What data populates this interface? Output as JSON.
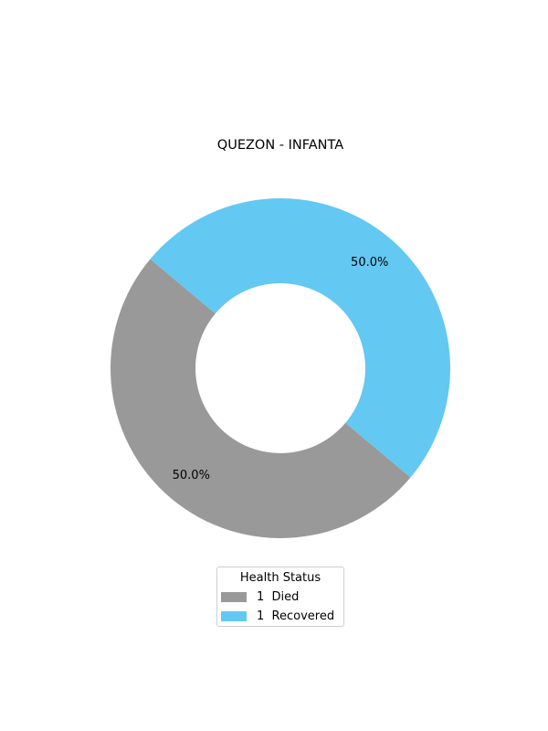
{
  "chart_data": {
    "type": "pie",
    "style": "donut",
    "title": "QUEZON - INFANTA",
    "slices": [
      {
        "name": "Died",
        "value": 1,
        "percent_label": "50.0%",
        "color": "#999999"
      },
      {
        "name": "Recovered",
        "value": 1,
        "percent_label": "50.0%",
        "color": "#63c8f2"
      }
    ],
    "legend": {
      "title": "Health Status",
      "placement": "bottom-center",
      "entries": [
        "1  Died",
        "1  Recovered"
      ]
    }
  }
}
